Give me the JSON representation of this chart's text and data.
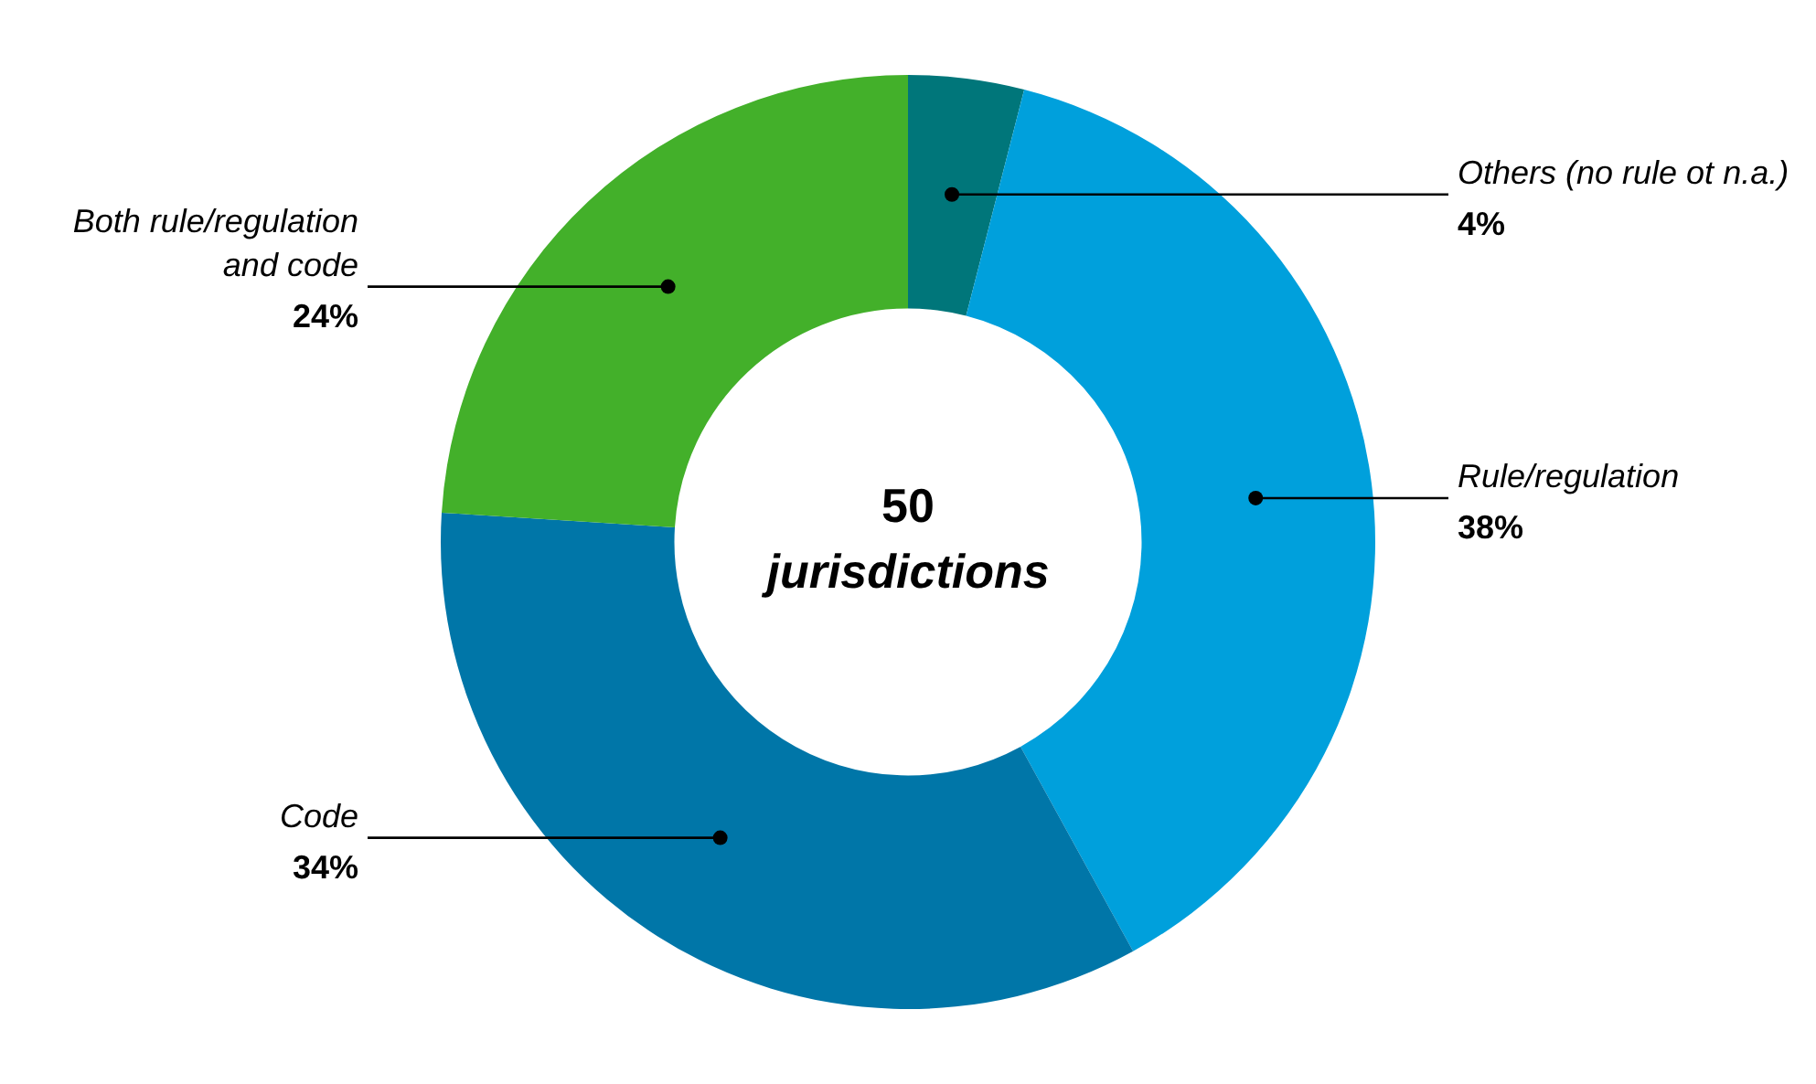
{
  "chart_data": {
    "type": "donut",
    "categories": [
      "Others (no rule ot n.a.)",
      "Rule/regulation",
      "Code",
      "Both rule/regulation and code"
    ],
    "values": [
      4,
      38,
      34,
      24
    ],
    "colors": [
      "#00767a",
      "#00a0dc",
      "#0076a8",
      "#43b02a"
    ],
    "annotations": [
      "50",
      "jurisdictions"
    ],
    "value_labels": [
      "4%",
      "38%",
      "34%",
      "24%"
    ],
    "legend": false
  }
}
